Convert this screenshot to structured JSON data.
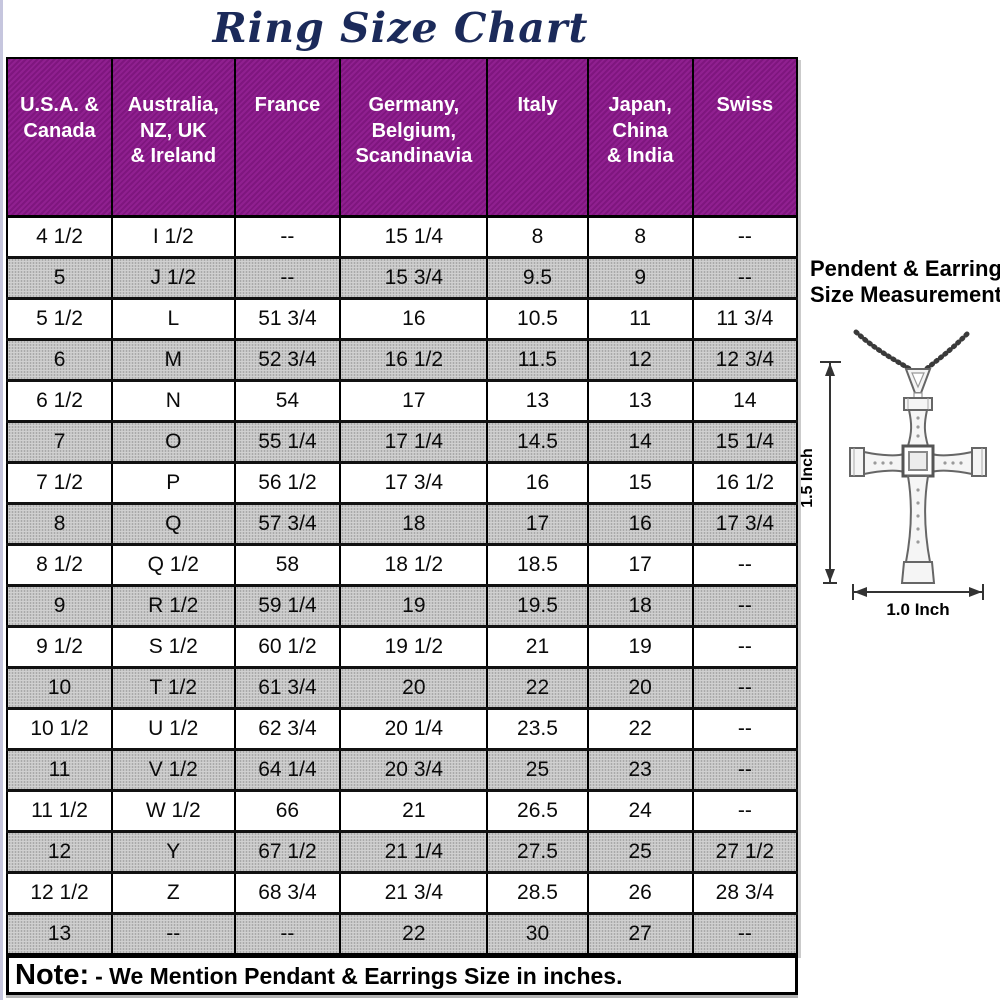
{
  "title": "Ring Size Chart",
  "chart_data": {
    "type": "table",
    "title": "Ring Size Chart",
    "columns": [
      "U.S.A. &\nCanada",
      "Australia,\nNZ, UK\n& Ireland",
      "France",
      "Germany,\nBelgium,\nScandinavia",
      "Italy",
      "Japan,\nChina\n& India",
      "Swiss"
    ],
    "rows": [
      [
        "4 1/2",
        "I 1/2",
        "--",
        "15 1/4",
        "8",
        "8",
        "--"
      ],
      [
        "5",
        "J 1/2",
        "--",
        "15 3/4",
        "9.5",
        "9",
        "--"
      ],
      [
        "5 1/2",
        "L",
        "51 3/4",
        "16",
        "10.5",
        "11",
        "11 3/4"
      ],
      [
        "6",
        "M",
        "52 3/4",
        "16 1/2",
        "11.5",
        "12",
        "12 3/4"
      ],
      [
        "6 1/2",
        "N",
        "54",
        "17",
        "13",
        "13",
        "14"
      ],
      [
        "7",
        "O",
        "55 1/4",
        "17 1/4",
        "14.5",
        "14",
        "15 1/4"
      ],
      [
        "7 1/2",
        "P",
        "56 1/2",
        "17 3/4",
        "16",
        "15",
        "16 1/2"
      ],
      [
        "8",
        "Q",
        "57 3/4",
        "18",
        "17",
        "16",
        "17 3/4"
      ],
      [
        "8 1/2",
        "Q 1/2",
        "58",
        "18 1/2",
        "18.5",
        "17",
        "--"
      ],
      [
        "9",
        "R 1/2",
        "59 1/4",
        "19",
        "19.5",
        "18",
        "--"
      ],
      [
        "9 1/2",
        "S 1/2",
        "60 1/2",
        "19 1/2",
        "21",
        "19",
        "--"
      ],
      [
        "10",
        "T 1/2",
        "61 3/4",
        "20",
        "22",
        "20",
        "--"
      ],
      [
        "10 1/2",
        "U 1/2",
        "62 3/4",
        "20 1/4",
        "23.5",
        "22",
        "--"
      ],
      [
        "11",
        "V 1/2",
        "64 1/4",
        "20 3/4",
        "25",
        "23",
        "--"
      ],
      [
        "11 1/2",
        "W 1/2",
        "66",
        "21",
        "26.5",
        "24",
        "--"
      ],
      [
        "12",
        "Y",
        "67 1/2",
        "21 1/4",
        "27.5",
        "25",
        "27 1/2"
      ],
      [
        "12 1/2",
        "Z",
        "68 3/4",
        "21 3/4",
        "28.5",
        "26",
        "28 3/4"
      ],
      [
        "13",
        "--",
        "--",
        "22",
        "30",
        "27",
        "--"
      ]
    ]
  },
  "note": {
    "label": "Note:",
    "text": "- We Mention Pendant & Earrings Size in inches."
  },
  "pendant_panel": {
    "heading_line1": "Pendent & Earring",
    "heading_line2": "Size Measurement",
    "height_label": "1.5 Inch",
    "width_label": "1.0 Inch"
  },
  "colors": {
    "header_bg": "#8B1D8B",
    "header_text": "#FFFFFF",
    "title_text": "#1B2A5A",
    "alt_row_bg": "#D0D0D0",
    "border": "#000000"
  }
}
